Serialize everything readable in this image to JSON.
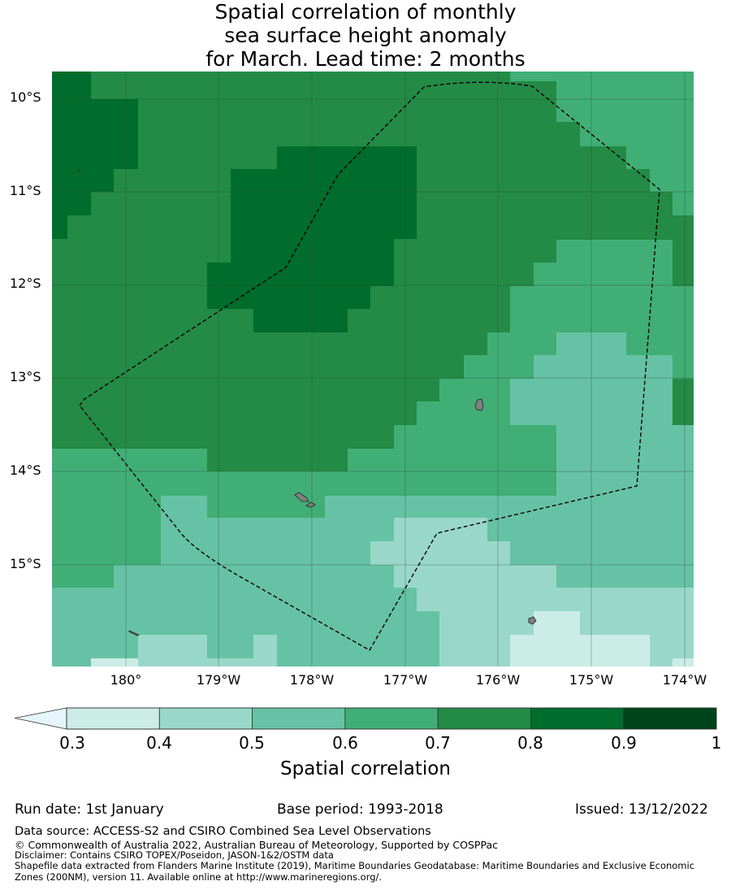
{
  "title": {
    "line1": "Spatial correlation of monthly",
    "line2": "sea surface height anomaly",
    "line3": "for March. Lead time: 2 months"
  },
  "map": {
    "lat_labels": [
      "10°S",
      "11°S",
      "12°S",
      "13°S",
      "14°S",
      "15°S"
    ],
    "lon_labels": [
      "180°",
      "179°W",
      "178°W",
      "177°W",
      "176°W",
      "175°W",
      "174°W"
    ],
    "lat_range": [
      -16.11,
      -9.69
    ],
    "lon_range": [
      179.13,
      -173.97
    ]
  },
  "colorbar": {
    "ticks": [
      "0.3",
      "0.4",
      "0.5",
      "0.6",
      "0.7",
      "0.8",
      "0.9",
      "1"
    ],
    "colors": [
      "#e5f5f9",
      "#ccece6",
      "#99d8c9",
      "#66c2a4",
      "#41ae76",
      "#238b45",
      "#006d2c",
      "#00441b"
    ],
    "label": "Spatial correlation"
  },
  "footer": {
    "run_date": "Run date: 1st January",
    "base_period": "Base period: 1993-2018",
    "issued": "Issued: 13/12/2022",
    "data_source": "Data source: ACCESS-S2 and CSIRO Combined Sea Level Observations",
    "copyright": "© Commonwealth of Australia 2022, Australian Bureau of Meteorology, Supported by COSPPac",
    "disclaimer": "Disclaimer: Contains CSIRO TOPEX/Poseidon, JASON-1&2/OSTM data",
    "shapefile_line1": "Shapefile data extracted from Flanders Marine Institute (2019), Maritime Boundaries Geodatabase: Maritime Boundaries and Exclusive Economic",
    "shapefile_line2": "Zones (200NM), version 11. Available online at http://www.marineregions.org/."
  }
}
